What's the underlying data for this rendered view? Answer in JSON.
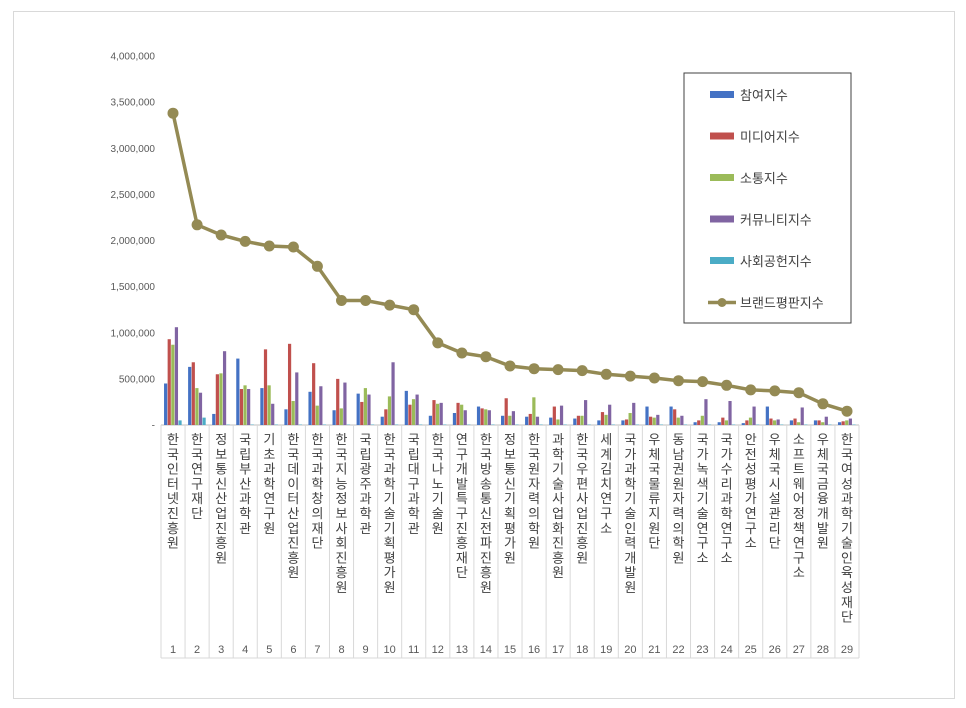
{
  "chart_data": {
    "type": "bar",
    "categories": [
      "한국인터넷진흥원",
      "한국연구재단",
      "정보통신산업진흥원",
      "국립부산과학관",
      "기초과학연구원",
      "한국데이터산업진흥원",
      "한국과학창의재단",
      "한국지능정보사회진흥원",
      "국립광주과학관",
      "한국과학기술기획평가원",
      "국립대구과학관",
      "한국나노기술원",
      "연구개발특구진흥재단",
      "한국방송통신전파진흥원",
      "정보통신기획평가원",
      "한국원자력의학원",
      "과학기술사업화진흥원",
      "한국우편사업진흥원",
      "세계김치연구소",
      "국가과학기술인력개발원",
      "우체국물류지원단",
      "동남권원자력의학원",
      "국가녹색기술연구소",
      "국가수리과학연구소",
      "안전성평가연구소",
      "우체국시설관리단",
      "소프트웨어정책연구소",
      "우체국금융개발원",
      "한국여성과학기술인육성재단"
    ],
    "rank_labels": [
      "1",
      "2",
      "3",
      "4",
      "5",
      "6",
      "7",
      "8",
      "9",
      "10",
      "11",
      "12",
      "13",
      "14",
      "15",
      "16",
      "17",
      "18",
      "19",
      "20",
      "21",
      "22",
      "23",
      "24",
      "25",
      "26",
      "27",
      "28",
      "29"
    ],
    "y_tick_labels": [
      "-",
      "500,000",
      "1,000,000",
      "1,500,000",
      "2,000,000",
      "2,500,000",
      "3,000,000",
      "3,500,000",
      "4,000,000"
    ],
    "ylim": [
      0,
      4000000
    ],
    "series": [
      {
        "name": "참여지수",
        "color": "#4472c4",
        "kind": "bar",
        "values": [
          450000,
          630000,
          120000,
          720000,
          400000,
          170000,
          360000,
          160000,
          340000,
          90000,
          370000,
          100000,
          130000,
          200000,
          100000,
          90000,
          80000,
          70000,
          50000,
          50000,
          200000,
          200000,
          30000,
          30000,
          20000,
          200000,
          50000,
          50000,
          30000
        ]
      },
      {
        "name": "미디어지수",
        "color": "#c0504d",
        "kind": "bar",
        "values": [
          930000,
          680000,
          550000,
          390000,
          820000,
          880000,
          670000,
          500000,
          250000,
          170000,
          220000,
          270000,
          240000,
          180000,
          290000,
          120000,
          200000,
          100000,
          140000,
          60000,
          90000,
          170000,
          50000,
          80000,
          50000,
          70000,
          70000,
          50000,
          40000
        ]
      },
      {
        "name": "소통지수",
        "color": "#9bbb59",
        "kind": "bar",
        "values": [
          870000,
          400000,
          560000,
          430000,
          430000,
          260000,
          210000,
          180000,
          400000,
          310000,
          280000,
          230000,
          220000,
          170000,
          100000,
          300000,
          60000,
          100000,
          110000,
          130000,
          80000,
          80000,
          100000,
          50000,
          80000,
          50000,
          30000,
          30000,
          50000
        ]
      },
      {
        "name": "커뮤니티지수",
        "color": "#8064a2",
        "kind": "bar",
        "values": [
          1060000,
          350000,
          800000,
          390000,
          230000,
          570000,
          420000,
          460000,
          330000,
          680000,
          330000,
          240000,
          160000,
          160000,
          150000,
          90000,
          210000,
          270000,
          220000,
          240000,
          110000,
          100000,
          280000,
          260000,
          200000,
          60000,
          190000,
          90000,
          70000
        ]
      },
      {
        "name": "사회공헌지수",
        "color": "#4bacc6",
        "kind": "bar",
        "values": [
          50000,
          80000,
          5000,
          5000,
          5000,
          5000,
          5000,
          5000,
          5000,
          5000,
          5000,
          5000,
          5000,
          5000,
          5000,
          5000,
          5000,
          5000,
          5000,
          5000,
          5000,
          5000,
          5000,
          5000,
          5000,
          5000,
          5000,
          5000,
          5000
        ]
      },
      {
        "name": "브랜드평판지수",
        "color": "#948a54",
        "kind": "line",
        "values": [
          3380000,
          2170000,
          2060000,
          1990000,
          1940000,
          1930000,
          1720000,
          1350000,
          1350000,
          1300000,
          1250000,
          890000,
          780000,
          740000,
          640000,
          610000,
          600000,
          590000,
          550000,
          530000,
          510000,
          480000,
          470000,
          430000,
          380000,
          370000,
          350000,
          230000,
          150000
        ]
      }
    ],
    "legend_position": "top-right",
    "grid": false
  }
}
